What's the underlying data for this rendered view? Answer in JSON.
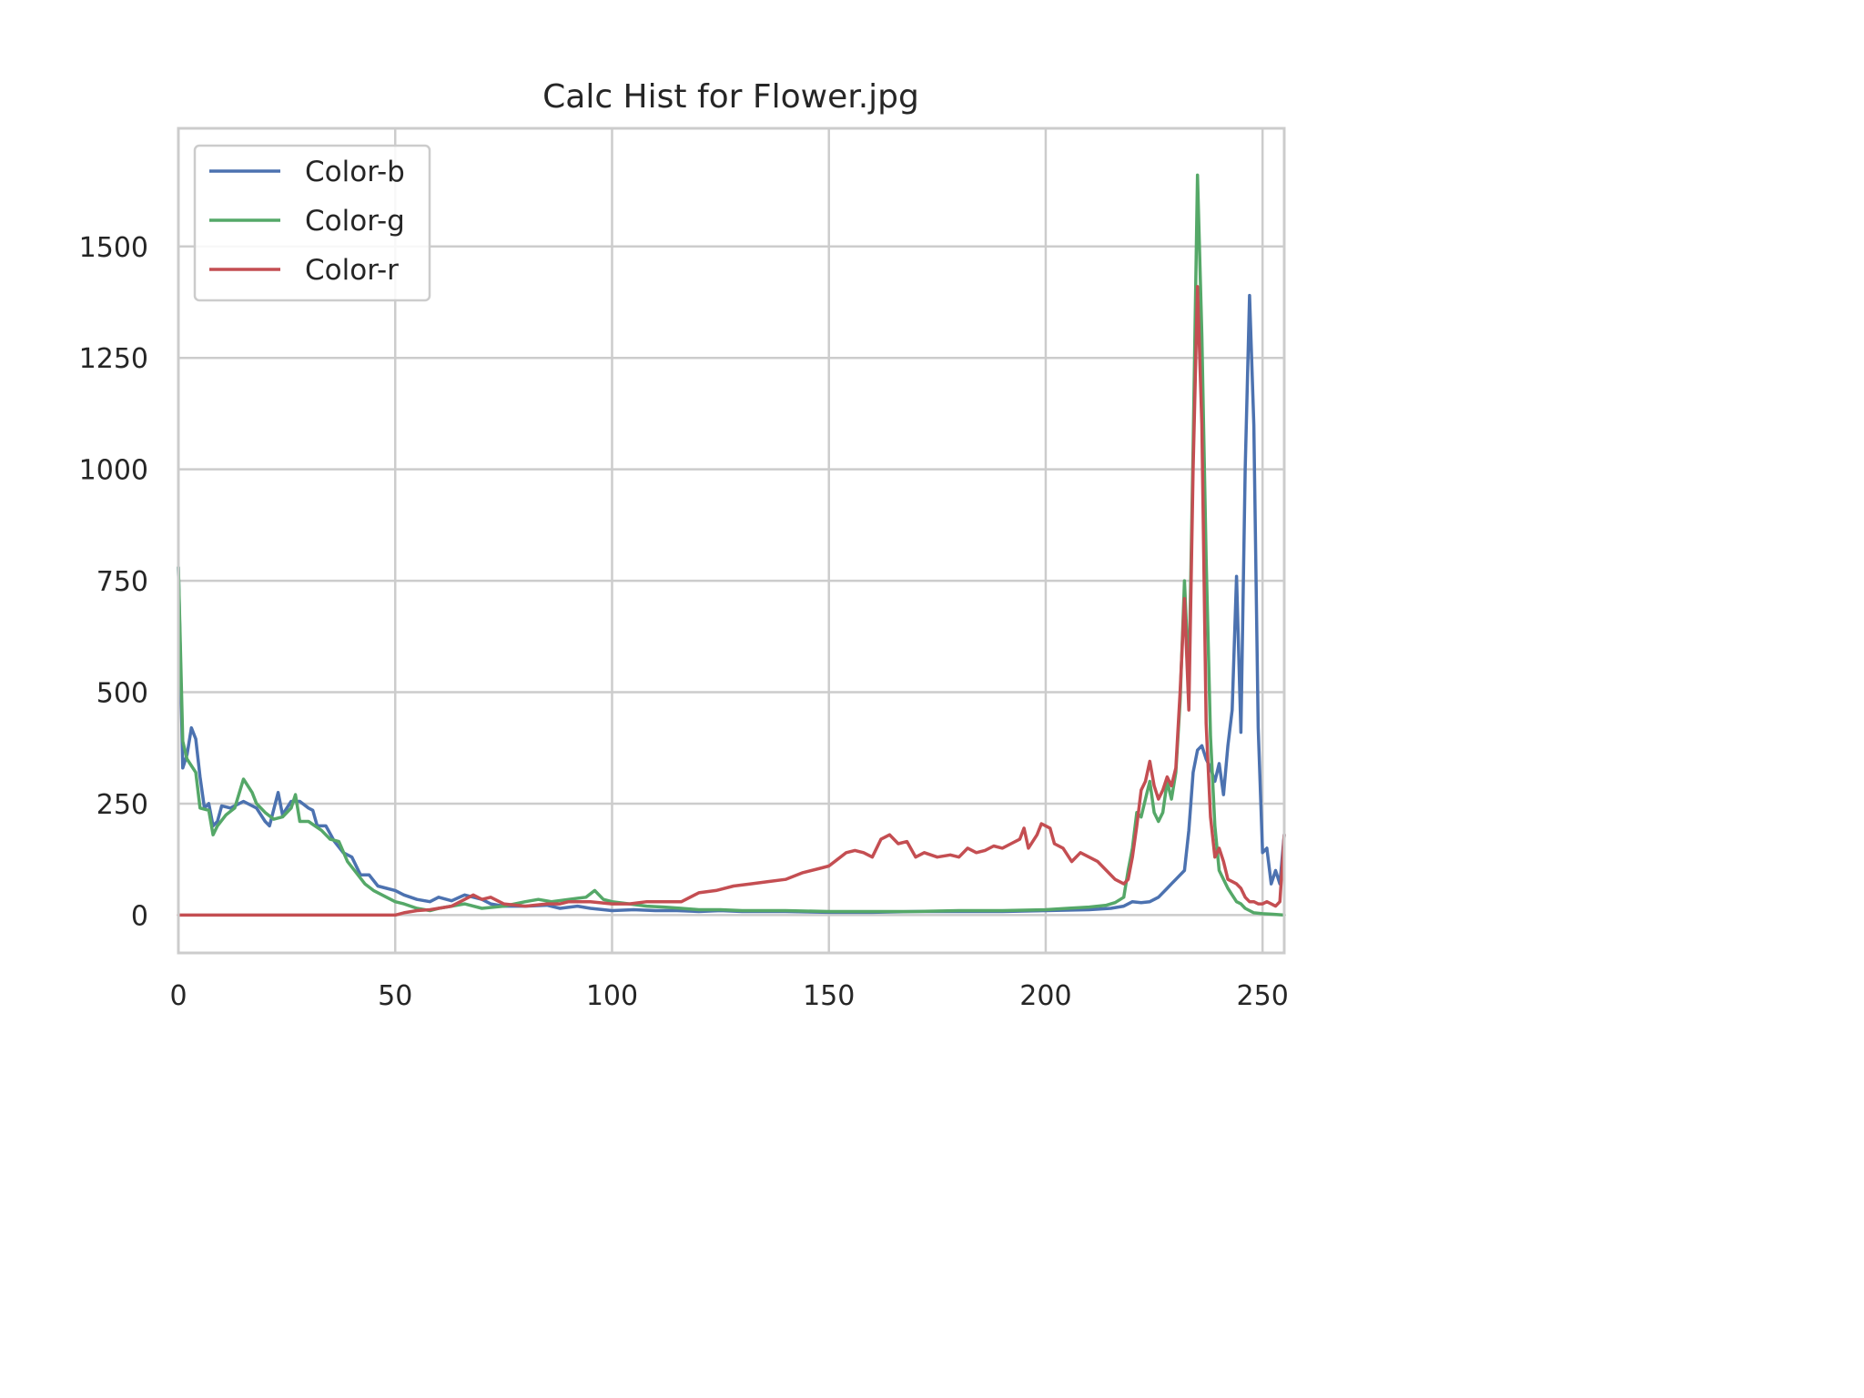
{
  "chart_data": {
    "type": "line",
    "title": "Calc Hist for Flower.jpg",
    "xlabel": "",
    "ylabel": "",
    "xlim": [
      0,
      255
    ],
    "ylim": [
      -85,
      1765
    ],
    "xticks": [
      "0",
      "50",
      "100",
      "150",
      "200",
      "250"
    ],
    "yticks": [
      "0",
      "250",
      "500",
      "750",
      "1000",
      "1250",
      "1500"
    ],
    "grid": true,
    "legend_position": "top-left",
    "series": [
      {
        "name": "Color-b",
        "color": "#4c72b0",
        "points": [
          [
            0,
            780
          ],
          [
            1,
            330
          ],
          [
            2,
            360
          ],
          [
            3,
            420
          ],
          [
            4,
            395
          ],
          [
            5,
            310
          ],
          [
            6,
            240
          ],
          [
            7,
            250
          ],
          [
            8,
            200
          ],
          [
            9,
            210
          ],
          [
            10,
            245
          ],
          [
            12,
            240
          ],
          [
            15,
            255
          ],
          [
            18,
            240
          ],
          [
            20,
            210
          ],
          [
            21,
            200
          ],
          [
            23,
            275
          ],
          [
            24,
            225
          ],
          [
            26,
            255
          ],
          [
            28,
            255
          ],
          [
            30,
            240
          ],
          [
            31,
            235
          ],
          [
            32,
            200
          ],
          [
            34,
            200
          ],
          [
            36,
            165
          ],
          [
            38,
            140
          ],
          [
            40,
            130
          ],
          [
            42,
            90
          ],
          [
            44,
            90
          ],
          [
            46,
            65
          ],
          [
            48,
            60
          ],
          [
            50,
            55
          ],
          [
            52,
            45
          ],
          [
            55,
            35
          ],
          [
            58,
            30
          ],
          [
            60,
            40
          ],
          [
            63,
            32
          ],
          [
            66,
            45
          ],
          [
            70,
            35
          ],
          [
            72,
            25
          ],
          [
            75,
            20
          ],
          [
            80,
            20
          ],
          [
            85,
            22
          ],
          [
            88,
            15
          ],
          [
            92,
            20
          ],
          [
            95,
            15
          ],
          [
            100,
            10
          ],
          [
            105,
            12
          ],
          [
            110,
            10
          ],
          [
            115,
            10
          ],
          [
            120,
            8
          ],
          [
            125,
            10
          ],
          [
            130,
            8
          ],
          [
            140,
            8
          ],
          [
            150,
            6
          ],
          [
            160,
            6
          ],
          [
            170,
            8
          ],
          [
            180,
            8
          ],
          [
            190,
            8
          ],
          [
            200,
            10
          ],
          [
            210,
            12
          ],
          [
            215,
            15
          ],
          [
            218,
            20
          ],
          [
            220,
            30
          ],
          [
            222,
            28
          ],
          [
            224,
            30
          ],
          [
            226,
            40
          ],
          [
            228,
            60
          ],
          [
            229,
            70
          ],
          [
            230,
            80
          ],
          [
            231,
            90
          ],
          [
            232,
            100
          ],
          [
            233,
            190
          ],
          [
            234,
            320
          ],
          [
            235,
            370
          ],
          [
            236,
            380
          ],
          [
            237,
            350
          ],
          [
            238,
            330
          ],
          [
            239,
            300
          ],
          [
            240,
            340
          ],
          [
            241,
            270
          ],
          [
            242,
            380
          ],
          [
            243,
            460
          ],
          [
            244,
            760
          ],
          [
            245,
            410
          ],
          [
            246,
            1000
          ],
          [
            247,
            1390
          ],
          [
            248,
            1100
          ],
          [
            249,
            420
          ],
          [
            250,
            140
          ],
          [
            251,
            150
          ],
          [
            252,
            70
          ],
          [
            253,
            100
          ],
          [
            254,
            70
          ],
          [
            255,
            180
          ]
        ]
      },
      {
        "name": "Color-g",
        "color": "#55a868",
        "points": [
          [
            0,
            780
          ],
          [
            1,
            390
          ],
          [
            2,
            350
          ],
          [
            4,
            320
          ],
          [
            5,
            240
          ],
          [
            7,
            235
          ],
          [
            8,
            180
          ],
          [
            9,
            200
          ],
          [
            11,
            225
          ],
          [
            13,
            240
          ],
          [
            15,
            305
          ],
          [
            17,
            275
          ],
          [
            18,
            250
          ],
          [
            20,
            230
          ],
          [
            22,
            215
          ],
          [
            24,
            220
          ],
          [
            26,
            240
          ],
          [
            27,
            270
          ],
          [
            28,
            210
          ],
          [
            30,
            210
          ],
          [
            33,
            190
          ],
          [
            35,
            170
          ],
          [
            37,
            165
          ],
          [
            39,
            120
          ],
          [
            41,
            95
          ],
          [
            43,
            70
          ],
          [
            45,
            55
          ],
          [
            48,
            40
          ],
          [
            50,
            30
          ],
          [
            52,
            25
          ],
          [
            55,
            15
          ],
          [
            58,
            10
          ],
          [
            60,
            15
          ],
          [
            63,
            20
          ],
          [
            66,
            25
          ],
          [
            70,
            15
          ],
          [
            75,
            20
          ],
          [
            80,
            30
          ],
          [
            83,
            35
          ],
          [
            86,
            30
          ],
          [
            90,
            35
          ],
          [
            94,
            40
          ],
          [
            96,
            55
          ],
          [
            98,
            35
          ],
          [
            100,
            30
          ],
          [
            104,
            25
          ],
          [
            108,
            20
          ],
          [
            112,
            18
          ],
          [
            116,
            15
          ],
          [
            120,
            12
          ],
          [
            125,
            12
          ],
          [
            130,
            10
          ],
          [
            140,
            10
          ],
          [
            150,
            8
          ],
          [
            160,
            8
          ],
          [
            170,
            8
          ],
          [
            180,
            10
          ],
          [
            190,
            10
          ],
          [
            200,
            12
          ],
          [
            205,
            15
          ],
          [
            210,
            18
          ],
          [
            214,
            22
          ],
          [
            216,
            28
          ],
          [
            218,
            40
          ],
          [
            219,
            100
          ],
          [
            220,
            150
          ],
          [
            221,
            230
          ],
          [
            222,
            220
          ],
          [
            223,
            260
          ],
          [
            224,
            300
          ],
          [
            225,
            230
          ],
          [
            226,
            210
          ],
          [
            227,
            230
          ],
          [
            228,
            300
          ],
          [
            229,
            260
          ],
          [
            230,
            320
          ],
          [
            231,
            480
          ],
          [
            232,
            750
          ],
          [
            233,
            520
          ],
          [
            234,
            1050
          ],
          [
            235,
            1660
          ],
          [
            236,
            1300
          ],
          [
            237,
            800
          ],
          [
            238,
            400
          ],
          [
            239,
            200
          ],
          [
            240,
            100
          ],
          [
            241,
            80
          ],
          [
            242,
            60
          ],
          [
            243,
            45
          ],
          [
            244,
            30
          ],
          [
            245,
            25
          ],
          [
            246,
            15
          ],
          [
            247,
            10
          ],
          [
            248,
            5
          ],
          [
            250,
            3
          ],
          [
            252,
            2
          ],
          [
            255,
            0
          ]
        ]
      },
      {
        "name": "Color-r",
        "color": "#c44e52",
        "points": [
          [
            0,
            0
          ],
          [
            5,
            0
          ],
          [
            10,
            0
          ],
          [
            15,
            0
          ],
          [
            20,
            0
          ],
          [
            25,
            0
          ],
          [
            30,
            0
          ],
          [
            35,
            0
          ],
          [
            40,
            0
          ],
          [
            45,
            0
          ],
          [
            50,
            0
          ],
          [
            52,
            5
          ],
          [
            55,
            10
          ],
          [
            58,
            12
          ],
          [
            60,
            15
          ],
          [
            63,
            20
          ],
          [
            66,
            35
          ],
          [
            68,
            45
          ],
          [
            70,
            35
          ],
          [
            72,
            40
          ],
          [
            75,
            25
          ],
          [
            80,
            20
          ],
          [
            85,
            25
          ],
          [
            88,
            25
          ],
          [
            90,
            30
          ],
          [
            95,
            30
          ],
          [
            100,
            25
          ],
          [
            104,
            25
          ],
          [
            108,
            30
          ],
          [
            112,
            30
          ],
          [
            116,
            30
          ],
          [
            120,
            50
          ],
          [
            124,
            55
          ],
          [
            128,
            65
          ],
          [
            132,
            70
          ],
          [
            136,
            75
          ],
          [
            140,
            80
          ],
          [
            144,
            95
          ],
          [
            148,
            105
          ],
          [
            150,
            110
          ],
          [
            152,
            125
          ],
          [
            154,
            140
          ],
          [
            156,
            145
          ],
          [
            158,
            140
          ],
          [
            160,
            130
          ],
          [
            162,
            170
          ],
          [
            164,
            180
          ],
          [
            166,
            160
          ],
          [
            168,
            165
          ],
          [
            170,
            130
          ],
          [
            172,
            140
          ],
          [
            175,
            130
          ],
          [
            178,
            135
          ],
          [
            180,
            130
          ],
          [
            182,
            150
          ],
          [
            184,
            140
          ],
          [
            186,
            145
          ],
          [
            188,
            155
          ],
          [
            190,
            150
          ],
          [
            192,
            160
          ],
          [
            194,
            170
          ],
          [
            195,
            195
          ],
          [
            196,
            150
          ],
          [
            198,
            180
          ],
          [
            199,
            205
          ],
          [
            200,
            200
          ],
          [
            201,
            195
          ],
          [
            202,
            160
          ],
          [
            204,
            150
          ],
          [
            206,
            120
          ],
          [
            208,
            140
          ],
          [
            210,
            130
          ],
          [
            212,
            120
          ],
          [
            214,
            100
          ],
          [
            216,
            80
          ],
          [
            218,
            70
          ],
          [
            219,
            80
          ],
          [
            220,
            130
          ],
          [
            221,
            200
          ],
          [
            222,
            280
          ],
          [
            223,
            300
          ],
          [
            224,
            345
          ],
          [
            225,
            290
          ],
          [
            226,
            260
          ],
          [
            227,
            280
          ],
          [
            228,
            310
          ],
          [
            229,
            290
          ],
          [
            230,
            330
          ],
          [
            231,
            500
          ],
          [
            232,
            710
          ],
          [
            233,
            460
          ],
          [
            234,
            1000
          ],
          [
            235,
            1410
          ],
          [
            236,
            1100
          ],
          [
            237,
            430
          ],
          [
            238,
            220
          ],
          [
            239,
            130
          ],
          [
            240,
            150
          ],
          [
            241,
            120
          ],
          [
            242,
            80
          ],
          [
            243,
            75
          ],
          [
            244,
            70
          ],
          [
            245,
            60
          ],
          [
            246,
            40
          ],
          [
            247,
            30
          ],
          [
            248,
            30
          ],
          [
            249,
            25
          ],
          [
            250,
            25
          ],
          [
            251,
            30
          ],
          [
            252,
            25
          ],
          [
            253,
            20
          ],
          [
            254,
            30
          ],
          [
            255,
            180
          ]
        ]
      }
    ]
  }
}
